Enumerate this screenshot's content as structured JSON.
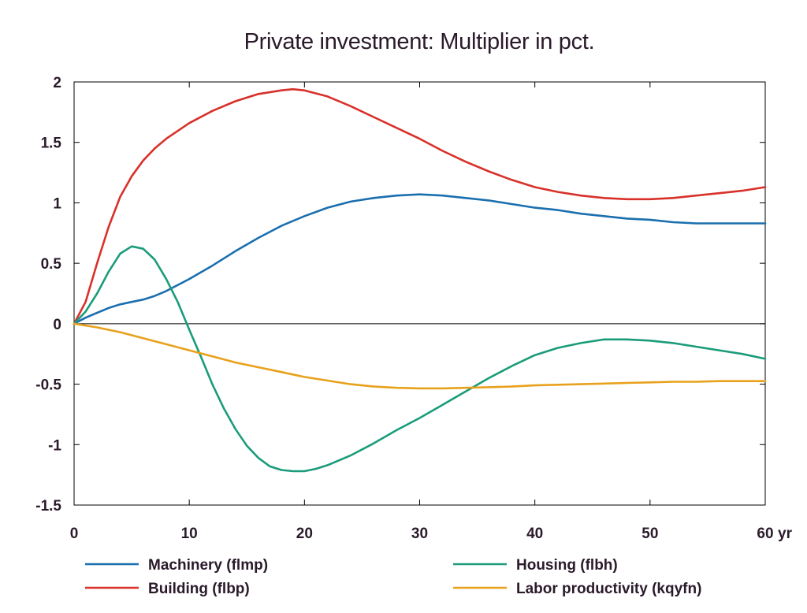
{
  "chart_data": {
    "type": "line",
    "title": "Private investment: Multiplier in pct.",
    "xlabel": "",
    "ylabel": "",
    "x_unit": "yr",
    "xlim": [
      0,
      60
    ],
    "ylim": [
      -1.5,
      2
    ],
    "x_ticks": [
      "0",
      "10",
      "20",
      "30",
      "40",
      "50",
      "60"
    ],
    "x_tick_values": [
      0,
      10,
      20,
      30,
      40,
      50,
      60
    ],
    "y_ticks": [
      "2",
      "1.5",
      "1",
      "0.5",
      "0",
      "-0.5",
      "-1",
      "-1.5"
    ],
    "y_tick_values": [
      2,
      1.5,
      1,
      0.5,
      0,
      -0.5,
      -1,
      -1.5
    ],
    "grid": false,
    "legend_placement": "bottom",
    "series": [
      {
        "name": "Machinery (flmp)",
        "color": "#1a6fae",
        "x": [
          0,
          1,
          2,
          3,
          4,
          5,
          6,
          7,
          8,
          10,
          12,
          14,
          16,
          18,
          20,
          22,
          24,
          26,
          28,
          30,
          32,
          34,
          36,
          38,
          40,
          42,
          44,
          46,
          48,
          50,
          52,
          54,
          56,
          58,
          60
        ],
        "y": [
          0,
          0.05,
          0.09,
          0.13,
          0.16,
          0.18,
          0.2,
          0.23,
          0.27,
          0.37,
          0.48,
          0.6,
          0.71,
          0.81,
          0.89,
          0.96,
          1.01,
          1.04,
          1.06,
          1.07,
          1.06,
          1.04,
          1.02,
          0.99,
          0.96,
          0.94,
          0.91,
          0.89,
          0.87,
          0.86,
          0.84,
          0.83,
          0.83,
          0.83,
          0.83
        ]
      },
      {
        "name": "Building (flbp)",
        "color": "#d8312a",
        "x": [
          0,
          1,
          2,
          3,
          4,
          5,
          6,
          7,
          8,
          10,
          12,
          14,
          16,
          18,
          19,
          20,
          22,
          24,
          26,
          28,
          30,
          32,
          34,
          36,
          38,
          40,
          42,
          44,
          46,
          48,
          50,
          52,
          54,
          56,
          58,
          60
        ],
        "y": [
          0,
          0.18,
          0.5,
          0.8,
          1.05,
          1.22,
          1.35,
          1.45,
          1.53,
          1.66,
          1.76,
          1.84,
          1.9,
          1.93,
          1.94,
          1.93,
          1.88,
          1.8,
          1.71,
          1.62,
          1.53,
          1.43,
          1.34,
          1.26,
          1.19,
          1.13,
          1.09,
          1.06,
          1.04,
          1.03,
          1.03,
          1.04,
          1.06,
          1.08,
          1.1,
          1.13
        ]
      },
      {
        "name": "Housing (flbh)",
        "color": "#1a9c7a",
        "x": [
          0,
          1,
          2,
          3,
          4,
          5,
          6,
          7,
          8,
          9,
          10,
          11,
          12,
          13,
          14,
          15,
          16,
          17,
          18,
          19,
          20,
          21,
          22,
          24,
          26,
          28,
          30,
          32,
          34,
          36,
          38,
          40,
          42,
          44,
          46,
          48,
          50,
          52,
          54,
          56,
          58,
          60
        ],
        "y": [
          0,
          0.1,
          0.25,
          0.43,
          0.58,
          0.64,
          0.62,
          0.53,
          0.37,
          0.18,
          -0.05,
          -0.27,
          -0.5,
          -0.7,
          -0.87,
          -1.01,
          -1.11,
          -1.18,
          -1.21,
          -1.22,
          -1.22,
          -1.2,
          -1.17,
          -1.09,
          -0.99,
          -0.88,
          -0.78,
          -0.67,
          -0.56,
          -0.45,
          -0.35,
          -0.26,
          -0.2,
          -0.16,
          -0.13,
          -0.13,
          -0.14,
          -0.16,
          -0.19,
          -0.22,
          -0.25,
          -0.29
        ]
      },
      {
        "name": "Labor productivity (kqyfn)",
        "color": "#e8a11c",
        "x": [
          0,
          2,
          4,
          6,
          8,
          10,
          12,
          14,
          16,
          18,
          20,
          22,
          24,
          26,
          28,
          30,
          32,
          34,
          36,
          38,
          40,
          42,
          44,
          46,
          48,
          50,
          52,
          54,
          56,
          58,
          60
        ],
        "y": [
          0,
          -0.03,
          -0.07,
          -0.12,
          -0.17,
          -0.22,
          -0.27,
          -0.32,
          -0.36,
          -0.4,
          -0.44,
          -0.47,
          -0.5,
          -0.52,
          -0.53,
          -0.535,
          -0.535,
          -0.53,
          -0.525,
          -0.52,
          -0.51,
          -0.505,
          -0.5,
          -0.495,
          -0.49,
          -0.485,
          -0.48,
          -0.48,
          -0.475,
          -0.475,
          -0.475
        ]
      }
    ]
  }
}
